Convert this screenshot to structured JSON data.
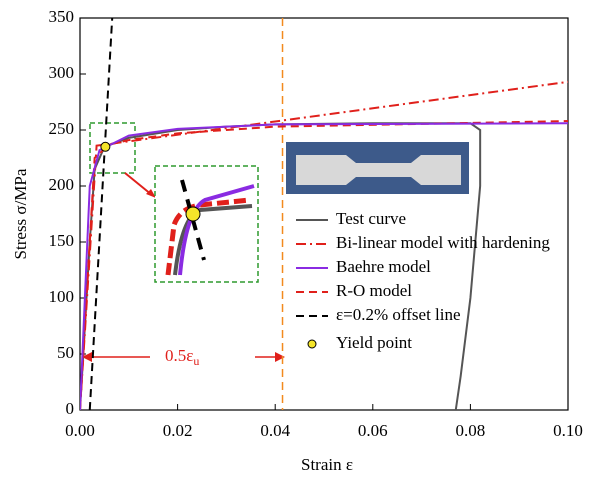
{
  "chart_data": {
    "type": "line",
    "xlabel": "Strain ε",
    "ylabel": "Stress σ/MPa",
    "xlim": [
      0,
      0.1
    ],
    "ylim": [
      0,
      350
    ],
    "xticks": [
      {
        "value": 0,
        "label": "0.00"
      },
      {
        "value": 0.02,
        "label": "0.02"
      },
      {
        "value": 0.04,
        "label": "0.04"
      },
      {
        "value": 0.06,
        "label": "0.06"
      },
      {
        "value": 0.08,
        "label": "0.08"
      },
      {
        "value": 0.1,
        "label": "0.10"
      }
    ],
    "yticks": [
      0,
      50,
      100,
      150,
      200,
      250,
      300,
      350
    ],
    "vline": {
      "x": 0.0415,
      "color": "#f28a1e"
    },
    "span_label": {
      "text": "0.5ε",
      "subscript": "u",
      "color": "#e0201b"
    },
    "series": [
      {
        "name": "Test curve",
        "color": "#555555",
        "dash": "solid",
        "x": [
          0,
          0.002,
          0.003,
          0.005,
          0.01,
          0.02,
          0.03,
          0.04,
          0.06,
          0.08,
          0.082,
          0.082,
          0.08,
          0.078,
          0.077
        ],
        "values": [
          0,
          150,
          215,
          235,
          243,
          250,
          253,
          255,
          256,
          256,
          250,
          200,
          100,
          30,
          0
        ]
      },
      {
        "name": "Bi-linear model with hardening",
        "color": "#e0201b",
        "dash": "dashdot",
        "x": [
          0,
          0.0034,
          0.1
        ],
        "values": [
          0,
          236,
          293
        ]
      },
      {
        "name": "Baehre model",
        "color": "#8a2be2",
        "dash": "solid",
        "x": [
          0,
          0.002,
          0.004,
          0.01,
          0.02,
          0.04,
          0.1
        ],
        "values": [
          0,
          200,
          232,
          245,
          251,
          255,
          256
        ]
      },
      {
        "name": "R-O model",
        "color": "#e0201b",
        "dash": "dashed",
        "x": [
          0,
          0.003,
          0.006,
          0.01,
          0.02,
          0.04,
          0.1
        ],
        "values": [
          0,
          225,
          237,
          241,
          247,
          253,
          258
        ]
      },
      {
        "name": "ε=0.2% offset line",
        "color": "#000000",
        "dash": "dashed",
        "x": [
          0.002,
          0.0066
        ],
        "values": [
          0,
          350
        ]
      },
      {
        "name": "Yield point",
        "color": "#f5e52a",
        "dash": "marker",
        "x": [
          0.0052
        ],
        "values": [
          235
        ]
      }
    ]
  }
}
